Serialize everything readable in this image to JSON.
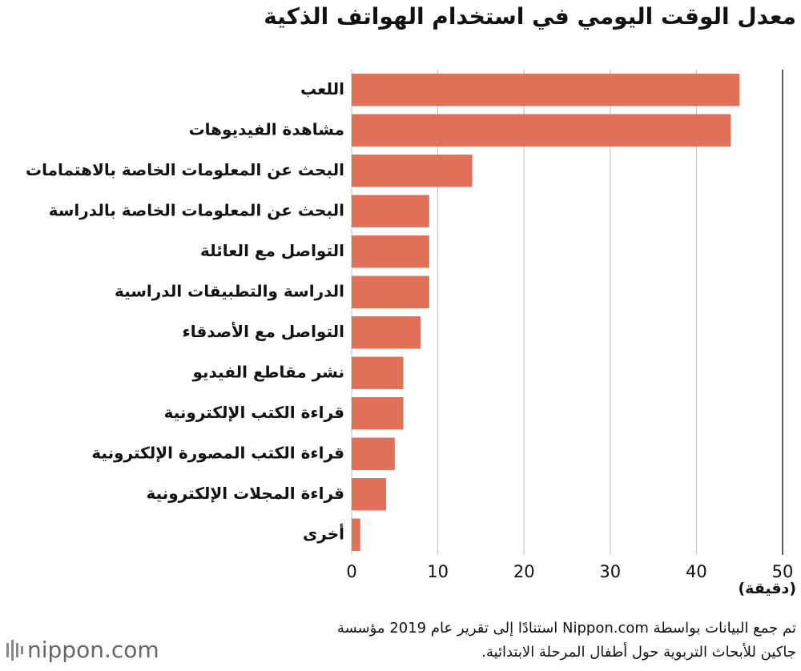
{
  "chart_data": {
    "type": "bar",
    "orientation": "horizontal",
    "title": "معدل الوقت اليومي في استخدام الهواتف الذكية",
    "categories": [
      "اللعب",
      "مشاهدة الفيديوهات",
      "البحث عن المعلومات الخاصة بالاهتمامات",
      "البحث عن المعلومات الخاصة بالدراسة",
      "التواصل مع العائلة",
      "الدراسة والتطبيقات الدراسية",
      "التواصل مع الأصدقاء",
      "نشر مقاطع الفيديو",
      "قراءة الكتب الإلكترونية",
      "قراءة الكتب المصورة الإلكترونية",
      "قراءة المجلات الإلكترونية",
      "أخرى"
    ],
    "values": [
      45,
      44,
      14,
      9,
      9,
      9,
      8,
      6,
      6,
      5,
      4,
      1
    ],
    "color": "#e07058",
    "xlim": [
      0,
      50
    ],
    "xticks": [
      0,
      10,
      20,
      30,
      40,
      50
    ],
    "grid": true,
    "x_label": "(دقيقة)",
    "source": [
      "تم جمع البيانات بواسطة Nippon.com استنادًا إلى تقرير عام 2019 مؤسسة",
      "جاكين للأبحاث التربوية حول أطفال المرحلة الابتدائية."
    ],
    "logo": "nippon.com"
  }
}
